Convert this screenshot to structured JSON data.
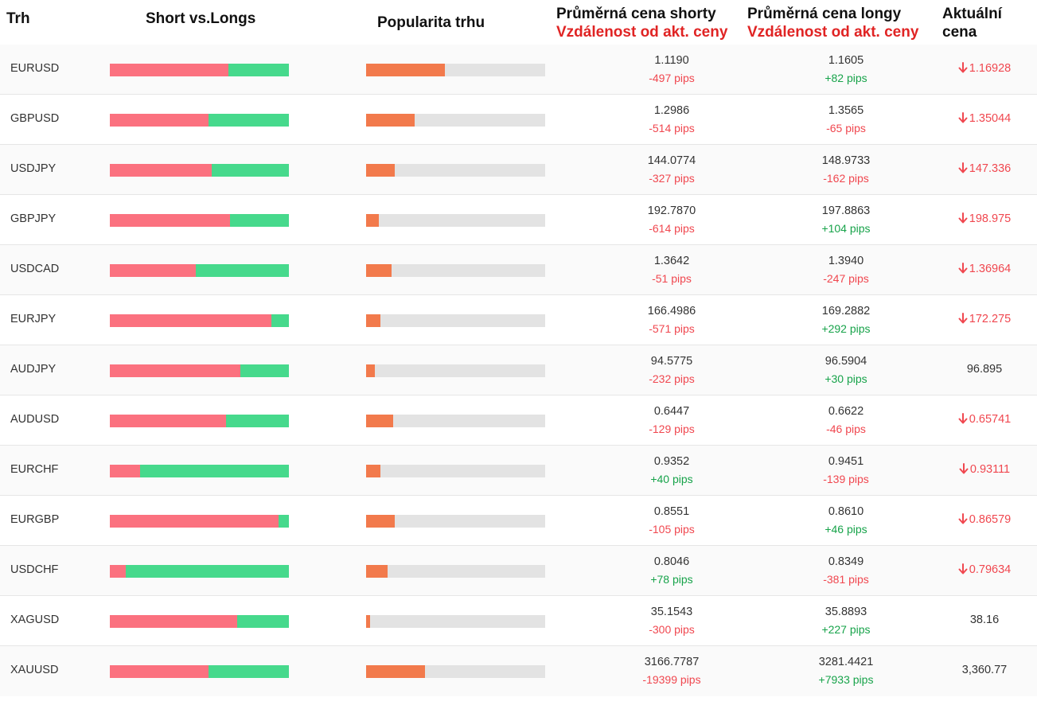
{
  "headers": {
    "market": "Trh",
    "short_vs_longs": "Short vs.Longs",
    "popularity": "Popularita trhu",
    "avg_short": "Průměrná cena shorty",
    "avg_long": "Průměrná cena longy",
    "distance": "Vzdálenost od akt. ceny",
    "current_line1": "Aktuální",
    "current_line2": "cena"
  },
  "colors": {
    "short": "#fb717f",
    "long": "#46d98c",
    "popularity": "#f27a4c",
    "negative": "#f0474f",
    "positive": "#17a34a"
  },
  "rows": [
    {
      "symbol": "EURUSD",
      "short_pct": 66,
      "popularity_pct": 44,
      "avg_short": "1.1190",
      "short_dist": "-497 pips",
      "avg_long": "1.1605",
      "long_dist": "+82 pips",
      "current": "1.16928",
      "trend": "down"
    },
    {
      "symbol": "GBPUSD",
      "short_pct": 55,
      "popularity_pct": 27,
      "avg_short": "1.2986",
      "short_dist": "-514 pips",
      "avg_long": "1.3565",
      "long_dist": "-65 pips",
      "current": "1.35044",
      "trend": "down"
    },
    {
      "symbol": "USDJPY",
      "short_pct": 57,
      "popularity_pct": 16,
      "avg_short": "144.0774",
      "short_dist": "-327 pips",
      "avg_long": "148.9733",
      "long_dist": "-162 pips",
      "current": "147.336",
      "trend": "down"
    },
    {
      "symbol": "GBPJPY",
      "short_pct": 67,
      "popularity_pct": 7,
      "avg_short": "192.7870",
      "short_dist": "-614 pips",
      "avg_long": "197.8863",
      "long_dist": "+104 pips",
      "current": "198.975",
      "trend": "down"
    },
    {
      "symbol": "USDCAD",
      "short_pct": 48,
      "popularity_pct": 14,
      "avg_short": "1.3642",
      "short_dist": "-51 pips",
      "avg_long": "1.3940",
      "long_dist": "-247 pips",
      "current": "1.36964",
      "trend": "down"
    },
    {
      "symbol": "EURJPY",
      "short_pct": 90,
      "popularity_pct": 8,
      "avg_short": "166.4986",
      "short_dist": "-571 pips",
      "avg_long": "169.2882",
      "long_dist": "+292 pips",
      "current": "172.275",
      "trend": "down"
    },
    {
      "symbol": "AUDJPY",
      "short_pct": 73,
      "popularity_pct": 5,
      "avg_short": "94.5775",
      "short_dist": "-232 pips",
      "avg_long": "96.5904",
      "long_dist": "+30 pips",
      "current": "96.895",
      "trend": "none"
    },
    {
      "symbol": "AUDUSD",
      "short_pct": 65,
      "popularity_pct": 15,
      "avg_short": "0.6447",
      "short_dist": "-129 pips",
      "avg_long": "0.6622",
      "long_dist": "-46 pips",
      "current": "0.65741",
      "trend": "down"
    },
    {
      "symbol": "EURCHF",
      "short_pct": 17,
      "popularity_pct": 8,
      "avg_short": "0.9352",
      "short_dist": "+40 pips",
      "avg_long": "0.9451",
      "long_dist": "-139 pips",
      "current": "0.93111",
      "trend": "down"
    },
    {
      "symbol": "EURGBP",
      "short_pct": 94,
      "popularity_pct": 16,
      "avg_short": "0.8551",
      "short_dist": "-105 pips",
      "avg_long": "0.8610",
      "long_dist": "+46 pips",
      "current": "0.86579",
      "trend": "down"
    },
    {
      "symbol": "USDCHF",
      "short_pct": 9,
      "popularity_pct": 12,
      "avg_short": "0.8046",
      "short_dist": "+78 pips",
      "avg_long": "0.8349",
      "long_dist": "-381 pips",
      "current": "0.79634",
      "trend": "down"
    },
    {
      "symbol": "XAGUSD",
      "short_pct": 71,
      "popularity_pct": 2,
      "avg_short": "35.1543",
      "short_dist": "-300 pips",
      "avg_long": "35.8893",
      "long_dist": "+227 pips",
      "current": "38.16",
      "trend": "none"
    },
    {
      "symbol": "XAUUSD",
      "short_pct": 55,
      "popularity_pct": 33,
      "avg_short": "3166.7787",
      "short_dist": "-19399 pips",
      "avg_long": "3281.4421",
      "long_dist": "+7933 pips",
      "current": "3,360.77",
      "trend": "none"
    }
  ]
}
